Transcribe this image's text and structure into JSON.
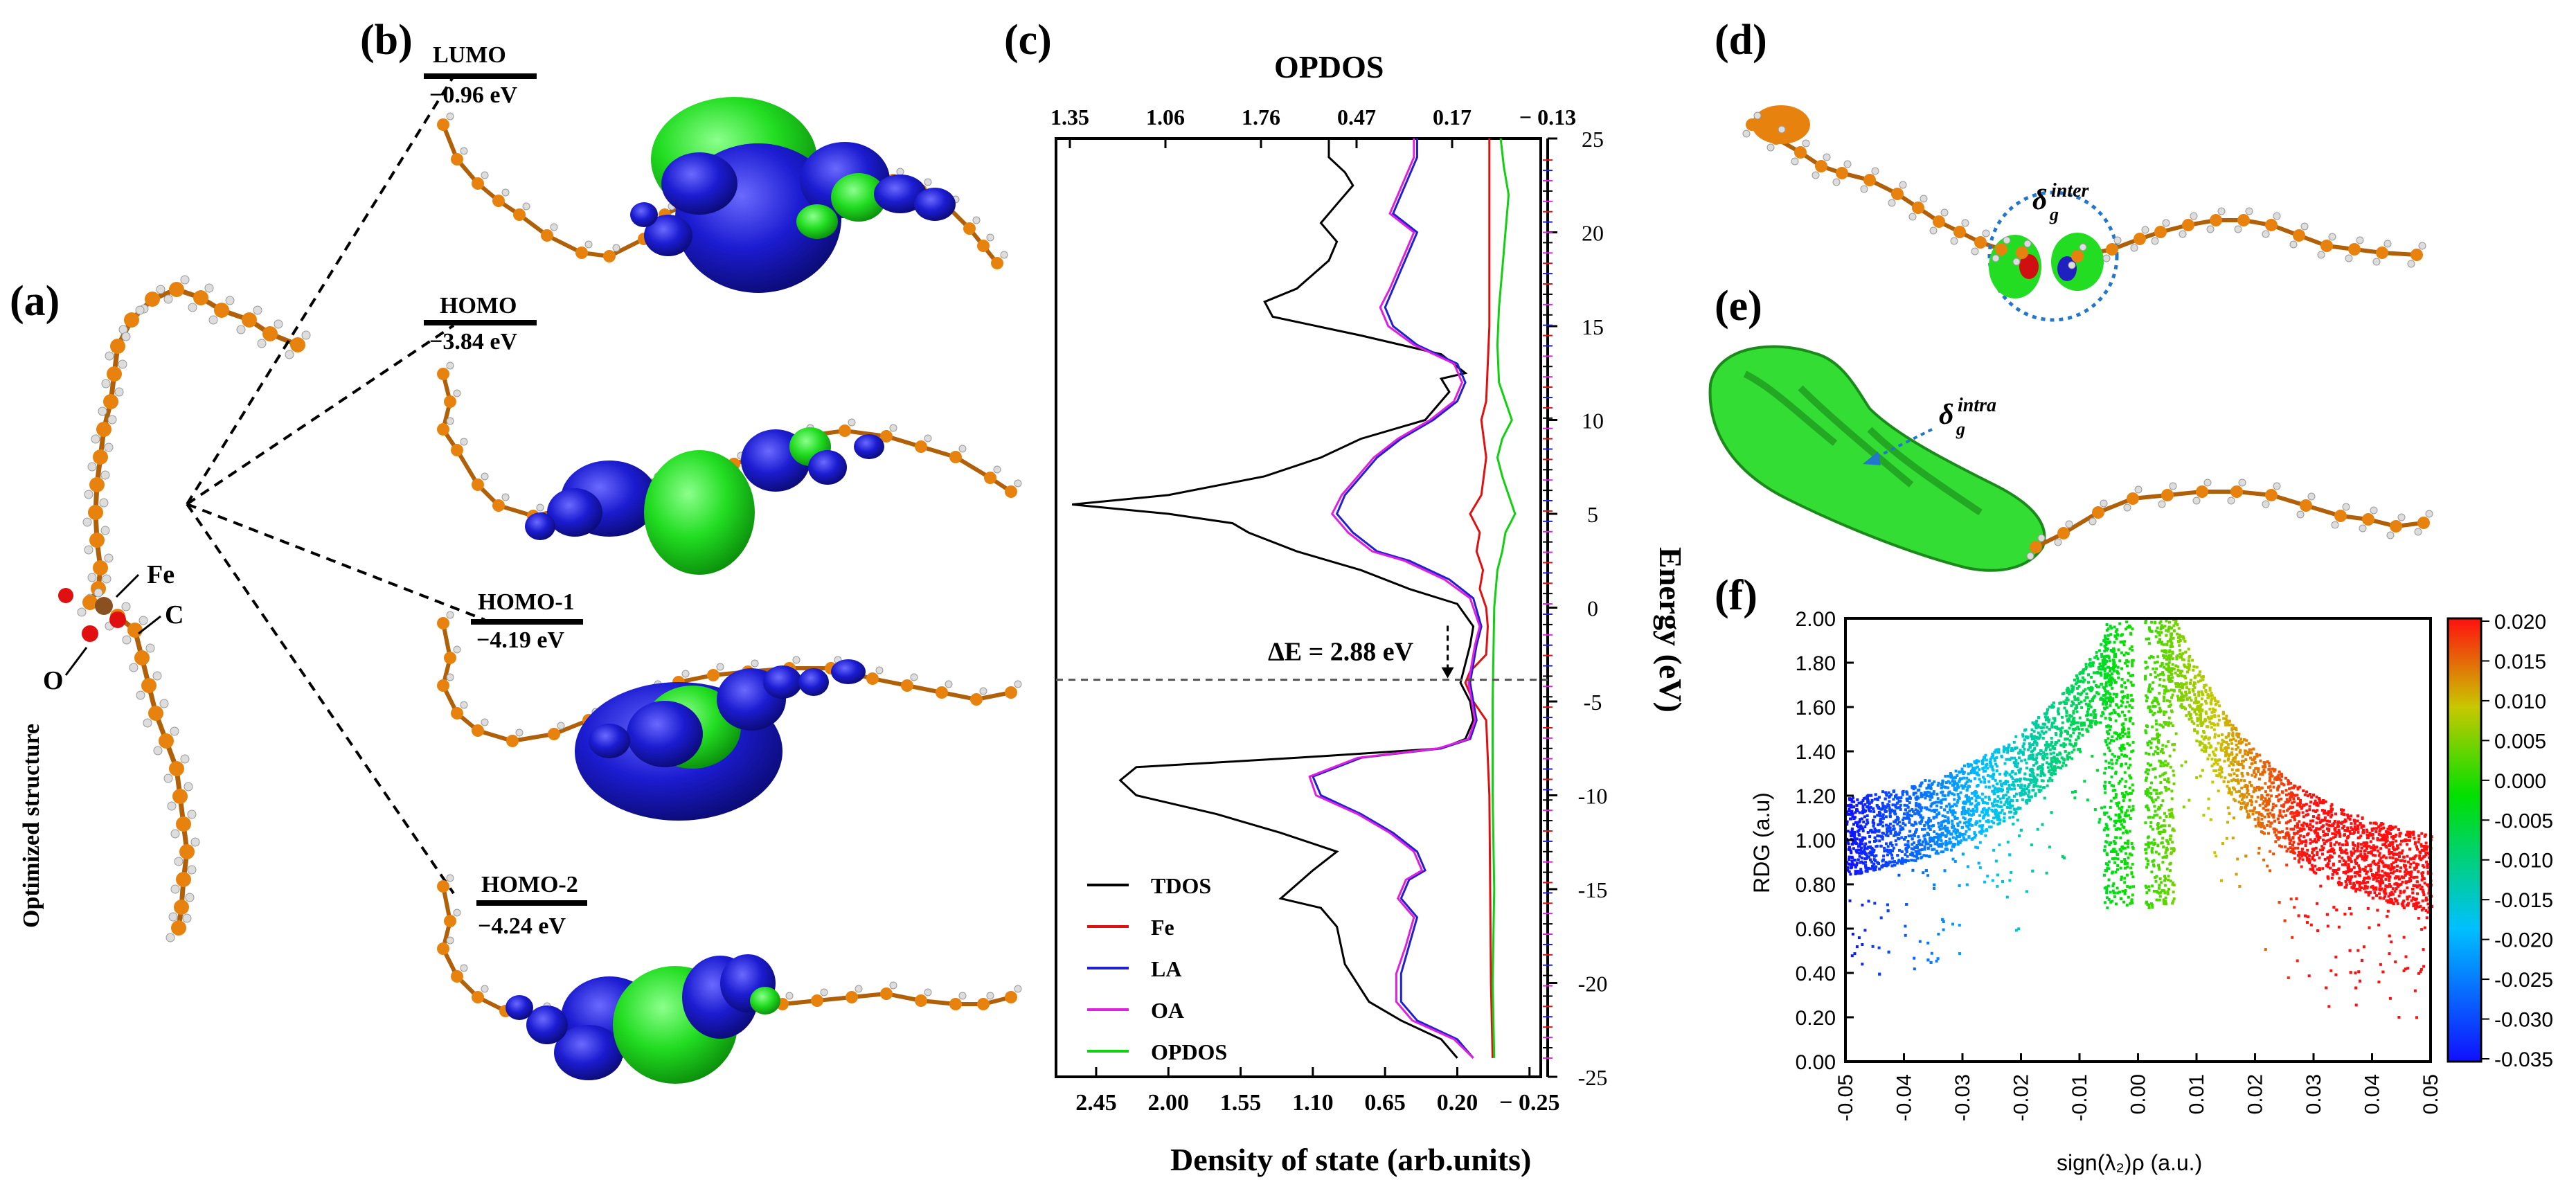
{
  "panel_labels": {
    "a": "(a)",
    "b": "(b)",
    "c": "(c)",
    "d": "(d)",
    "e": "(e)",
    "f": "(f)"
  },
  "panel_a": {
    "caption": "Optimized structure",
    "atom_labels": {
      "fe": "Fe",
      "c": "C",
      "o": "O"
    },
    "colors": {
      "carbon": "#e8820e",
      "hydrogen": "#dddddd",
      "oxygen": "#e01010"
    }
  },
  "panel_b": {
    "orbitals": [
      {
        "name": "LUMO",
        "energy": "−0.96 eV"
      },
      {
        "name": "HOMO",
        "energy": "−3.84 eV"
      },
      {
        "name": "HOMO-1",
        "energy": "−4.19 eV"
      },
      {
        "name": "HOMO-2",
        "energy": "−4.24 eV"
      }
    ],
    "colors": {
      "positive_lobe": "#1ee61e",
      "negative_lobe": "#1c1cd2"
    }
  },
  "panel_d": {
    "annotation_base": "δ",
    "annotation_sub": "g",
    "annotation_sup": "inter",
    "colors": {
      "surface": "#22dd22",
      "outline": "#2277cc"
    }
  },
  "panel_e": {
    "annotation_base": "δ",
    "annotation_sub": "g",
    "annotation_sup": "intra",
    "colors": {
      "surface": "#33dd33"
    }
  },
  "chart_data": [
    {
      "type": "line",
      "panel": "(c)",
      "title": "OPDOS",
      "xlabel": "Density of state (arb.units)",
      "ylabel": "Energy (eV)",
      "top_axis_ticks": [
        "1.35",
        "1.06",
        "1.76",
        "0.47",
        "0.17",
        "− 0.13"
      ],
      "bottom_axis_ticks": [
        "2.45",
        "2.00",
        "1.55",
        "1.10",
        "0.65",
        "0.20",
        "− 0.25"
      ],
      "y_ticks": [
        25,
        20,
        15,
        10,
        5,
        0,
        -5,
        -10,
        -15,
        -20,
        -25
      ],
      "ylim": [
        -25,
        25
      ],
      "xlim": [
        2.7,
        -0.32
      ],
      "gap_annotation": "ΔE = 2.88 eV",
      "gap_levels": [
        -3.84,
        -0.96
      ],
      "series": [
        {
          "name": "TDOS",
          "color": "#000000",
          "points": [
            [
              0.2,
              -24
            ],
            [
              0.3,
              -23
            ],
            [
              0.55,
              -22
            ],
            [
              0.75,
              -21
            ],
            [
              0.9,
              -19
            ],
            [
              0.95,
              -17
            ],
            [
              1.05,
              -16
            ],
            [
              1.3,
              -15.5
            ],
            [
              1.1,
              -14
            ],
            [
              0.95,
              -13
            ],
            [
              1.3,
              -12
            ],
            [
              1.7,
              -11
            ],
            [
              2.2,
              -10
            ],
            [
              2.3,
              -9.2
            ],
            [
              2.2,
              -8.5
            ],
            [
              1.2,
              -8
            ],
            [
              0.3,
              -7.5
            ],
            [
              0.15,
              -7
            ],
            [
              0.1,
              -6
            ],
            [
              0.12,
              -5
            ],
            [
              0.18,
              -4
            ],
            [
              0.12,
              -2
            ],
            [
              0.1,
              -1
            ],
            [
              0.2,
              0.2
            ],
            [
              0.5,
              1
            ],
            [
              0.8,
              2
            ],
            [
              1.2,
              3
            ],
            [
              1.5,
              4
            ],
            [
              1.6,
              4.5
            ],
            [
              2.0,
              5
            ],
            [
              2.6,
              5.5
            ],
            [
              2.0,
              6
            ],
            [
              1.4,
              7
            ],
            [
              1.05,
              8
            ],
            [
              0.8,
              9
            ],
            [
              0.4,
              10
            ],
            [
              0.25,
              11.5
            ],
            [
              0.3,
              12.2
            ],
            [
              0.15,
              12.5
            ],
            [
              0.3,
              13.5
            ],
            [
              0.8,
              14.5
            ],
            [
              1.35,
              15.5
            ],
            [
              1.4,
              16.3
            ],
            [
              1.2,
              17
            ],
            [
              1.0,
              18.5
            ],
            [
              0.95,
              19.5
            ],
            [
              1.05,
              20.5
            ],
            [
              0.95,
              21.5
            ],
            [
              0.85,
              22.5
            ],
            [
              0.9,
              23.2
            ],
            [
              1.0,
              24
            ],
            [
              1.0,
              25
            ]
          ]
        },
        {
          "name": "Fe",
          "color": "#e01010",
          "points": [
            [
              -0.02,
              -24
            ],
            [
              -0.01,
              -20
            ],
            [
              0.0,
              -10
            ],
            [
              0.02,
              -6
            ],
            [
              0.1,
              -5
            ],
            [
              0.15,
              -4
            ],
            [
              0.12,
              -3.4
            ],
            [
              0.02,
              -2.5
            ],
            [
              0.01,
              -1
            ],
            [
              0.02,
              0
            ],
            [
              0.06,
              1
            ],
            [
              0.04,
              2
            ],
            [
              0.08,
              3
            ],
            [
              0.06,
              4
            ],
            [
              0.12,
              5
            ],
            [
              0.05,
              6
            ],
            [
              0.02,
              8
            ],
            [
              0.05,
              10
            ],
            [
              0.02,
              11
            ],
            [
              0.0,
              15
            ],
            [
              0.0,
              25
            ]
          ]
        },
        {
          "name": "LA",
          "color": "#2020d0",
          "points": [
            [
              0.1,
              -24
            ],
            [
              0.2,
              -23
            ],
            [
              0.45,
              -22
            ],
            [
              0.55,
              -21
            ],
            [
              0.55,
              -19.5
            ],
            [
              0.5,
              -18
            ],
            [
              0.45,
              -16.5
            ],
            [
              0.55,
              -15.5
            ],
            [
              0.5,
              -14.5
            ],
            [
              0.4,
              -14
            ],
            [
              0.45,
              -13
            ],
            [
              0.6,
              -12
            ],
            [
              0.8,
              -11
            ],
            [
              1.05,
              -10
            ],
            [
              1.1,
              -9
            ],
            [
              0.8,
              -8
            ],
            [
              0.3,
              -7.5
            ],
            [
              0.12,
              -7
            ],
            [
              0.08,
              -6
            ],
            [
              0.1,
              -5
            ],
            [
              0.12,
              -4
            ],
            [
              0.08,
              -2
            ],
            [
              0.05,
              -1
            ],
            [
              0.1,
              0.5
            ],
            [
              0.25,
              1.5
            ],
            [
              0.5,
              2.5
            ],
            [
              0.7,
              3
            ],
            [
              0.85,
              4
            ],
            [
              0.95,
              5
            ],
            [
              0.9,
              6
            ],
            [
              0.8,
              7
            ],
            [
              0.7,
              8
            ],
            [
              0.55,
              9
            ],
            [
              0.35,
              10
            ],
            [
              0.2,
              11
            ],
            [
              0.15,
              12
            ],
            [
              0.2,
              13
            ],
            [
              0.45,
              14
            ],
            [
              0.6,
              15
            ],
            [
              0.65,
              16
            ],
            [
              0.6,
              17
            ],
            [
              0.55,
              18
            ],
            [
              0.5,
              19
            ],
            [
              0.45,
              20
            ],
            [
              0.6,
              21
            ],
            [
              0.55,
              22
            ],
            [
              0.5,
              23
            ],
            [
              0.45,
              24
            ],
            [
              0.45,
              25
            ]
          ]
        },
        {
          "name": "OA",
          "color": "#e020e0",
          "points": [
            [
              0.1,
              -24
            ],
            [
              0.22,
              -23
            ],
            [
              0.48,
              -22
            ],
            [
              0.58,
              -21
            ],
            [
              0.58,
              -19.5
            ],
            [
              0.52,
              -18
            ],
            [
              0.47,
              -16.5
            ],
            [
              0.57,
              -15.5
            ],
            [
              0.52,
              -14.5
            ],
            [
              0.42,
              -14
            ],
            [
              0.47,
              -13
            ],
            [
              0.62,
              -12
            ],
            [
              0.82,
              -11
            ],
            [
              1.08,
              -10
            ],
            [
              1.12,
              -9
            ],
            [
              0.82,
              -8
            ],
            [
              0.32,
              -7.5
            ],
            [
              0.13,
              -7
            ],
            [
              0.09,
              -6
            ],
            [
              0.11,
              -5
            ],
            [
              0.13,
              -4
            ],
            [
              0.09,
              -2
            ],
            [
              0.06,
              -1
            ],
            [
              0.12,
              0.5
            ],
            [
              0.28,
              1.5
            ],
            [
              0.53,
              2.5
            ],
            [
              0.73,
              3
            ],
            [
              0.88,
              4
            ],
            [
              0.98,
              5
            ],
            [
              0.92,
              6
            ],
            [
              0.82,
              7
            ],
            [
              0.72,
              8
            ],
            [
              0.57,
              9
            ],
            [
              0.37,
              10
            ],
            [
              0.22,
              11
            ],
            [
              0.17,
              12
            ],
            [
              0.22,
              13
            ],
            [
              0.47,
              14
            ],
            [
              0.63,
              15
            ],
            [
              0.68,
              16
            ],
            [
              0.62,
              17
            ],
            [
              0.57,
              18
            ],
            [
              0.52,
              19
            ],
            [
              0.47,
              20
            ],
            [
              0.62,
              21
            ],
            [
              0.57,
              22
            ],
            [
              0.52,
              23
            ],
            [
              0.47,
              24
            ],
            [
              0.47,
              25
            ]
          ]
        },
        {
          "name": "OPDOS",
          "color": "#10d010",
          "points": [
            [
              -0.03,
              -24
            ],
            [
              -0.02,
              -20
            ],
            [
              -0.03,
              -15
            ],
            [
              -0.02,
              -10
            ],
            [
              -0.02,
              -5
            ],
            [
              -0.03,
              0
            ],
            [
              -0.05,
              2
            ],
            [
              -0.08,
              3
            ],
            [
              -0.1,
              4
            ],
            [
              -0.16,
              5
            ],
            [
              -0.12,
              6
            ],
            [
              -0.08,
              7
            ],
            [
              -0.05,
              8
            ],
            [
              -0.08,
              9
            ],
            [
              -0.14,
              10
            ],
            [
              -0.1,
              11
            ],
            [
              -0.06,
              12
            ],
            [
              -0.05,
              14
            ],
            [
              -0.06,
              16
            ],
            [
              -0.08,
              18
            ],
            [
              -0.1,
              20
            ],
            [
              -0.12,
              22
            ],
            [
              -0.09,
              23.5
            ],
            [
              -0.07,
              25
            ]
          ]
        }
      ],
      "legend": [
        "TDOS",
        "Fe",
        "LA",
        "OA",
        "OPDOS"
      ],
      "legend_position": "bottom-left"
    },
    {
      "type": "scatter",
      "panel": "(f)",
      "xlabel": "sign(λ₂)ρ (a.u.)",
      "ylabel": "RDG (a.u)",
      "xlim": [
        -0.05,
        0.05
      ],
      "ylim": [
        0.0,
        2.0
      ],
      "x_ticks": [
        "-0.05",
        "-0.04",
        "-0.03",
        "-0.02",
        "-0.01",
        "0.00",
        "0.01",
        "0.02",
        "0.03",
        "0.04",
        "0.05"
      ],
      "y_ticks": [
        "0.00",
        "0.20",
        "0.40",
        "0.60",
        "0.80",
        "1.00",
        "1.20",
        "1.40",
        "1.60",
        "1.80",
        "2.00"
      ],
      "colorbar": {
        "min": -0.035,
        "max": 0.02,
        "ticks": [
          "0.020",
          "0.015",
          "0.010",
          "0.005",
          "0.000",
          "-0.005",
          "-0.010",
          "-0.015",
          "-0.020",
          "-0.025",
          "-0.030",
          "-0.035"
        ],
        "colors": [
          "#1010ff",
          "#00c0ff",
          "#00e000",
          "#c8c800",
          "#ff1010"
        ]
      },
      "clusters": [
        {
          "name": "left branch",
          "x_range": [
            -0.05,
            -0.005
          ],
          "rdg_at_far": 1.05,
          "rdg_near_zero": 2.0
        },
        {
          "name": "right branch",
          "x_range": [
            0.005,
            0.05
          ],
          "rdg_at_far": 0.85,
          "rdg_near_zero": 2.0
        }
      ]
    }
  ]
}
